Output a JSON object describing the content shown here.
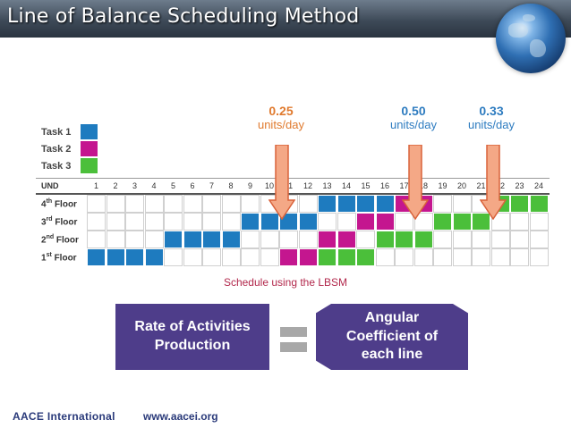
{
  "header": {
    "title": "Line of Balance Scheduling Method"
  },
  "annotations": [
    {
      "value": "0.25",
      "unit": "units/day",
      "color": "#e07a2e"
    },
    {
      "value": "0.50",
      "unit": "units/day",
      "color": "#2e7cc0"
    },
    {
      "value": "0.33",
      "unit": "units/day",
      "color": "#2e7cc0"
    }
  ],
  "legend": [
    {
      "label": "Task 1",
      "color": "#1e7bbf"
    },
    {
      "label": "Task 2",
      "color": "#c4168f"
    },
    {
      "label": "Task 3",
      "color": "#4bbf3a"
    }
  ],
  "table": {
    "corner_label": "UND",
    "columns": [
      "1",
      "2",
      "3",
      "4",
      "5",
      "6",
      "7",
      "8",
      "9",
      "10",
      "11",
      "12",
      "13",
      "14",
      "15",
      "16",
      "17",
      "18",
      "19",
      "20",
      "21",
      "22",
      "23",
      "24"
    ],
    "rows": [
      {
        "num": "4",
        "sup": "th",
        "name": "Floor",
        "cells": {
          "13": 1,
          "14": 1,
          "15": 1,
          "16": 1,
          "17": 2,
          "18": 2,
          "22": 3,
          "23": 3,
          "24": 3
        }
      },
      {
        "num": "3",
        "sup": "rd",
        "name": "Floor",
        "cells": {
          "9": 1,
          "10": 1,
          "11": 1,
          "12": 1,
          "15": 2,
          "16": 2,
          "19": 3,
          "20": 3,
          "21": 3
        }
      },
      {
        "num": "2",
        "sup": "nd",
        "name": "Floor",
        "cells": {
          "5": 1,
          "6": 1,
          "7": 1,
          "8": 1,
          "13": 2,
          "14": 2,
          "16": 3,
          "17": 3,
          "18": 3
        }
      },
      {
        "num": "1",
        "sup": "st",
        "name": "Floor",
        "cells": {
          "1": 1,
          "2": 1,
          "3": 1,
          "4": 1,
          "11": 2,
          "12": 2,
          "13": 3,
          "14": 3,
          "15": 3
        }
      }
    ]
  },
  "caption": "Schedule using the LBSM",
  "equation": {
    "left": "Rate of Activities Production",
    "right": "Angular Coefficient of each line"
  },
  "footer": {
    "org": "AACE International",
    "url": "www.aacei.org"
  },
  "colors": {
    "arrow_fill": "#f4a886",
    "arrow_stroke": "#d9623a"
  }
}
